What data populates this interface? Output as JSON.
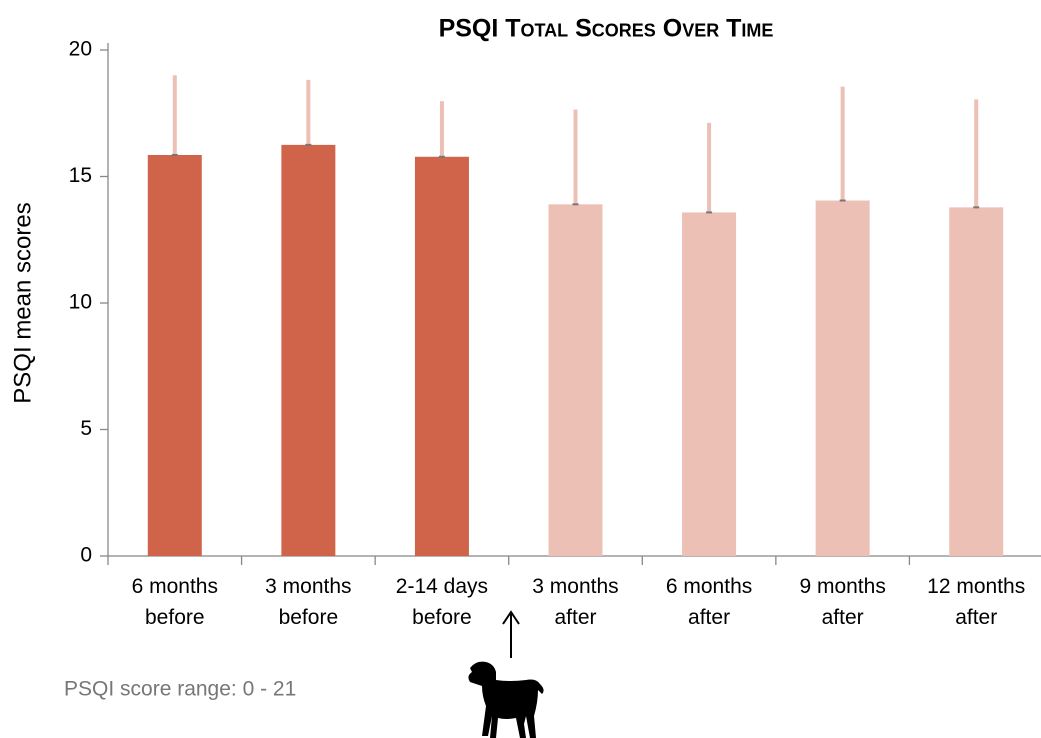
{
  "chart_data": {
    "type": "bar",
    "title": "PSQI Total Scores Over Time",
    "y_label": "PSQI mean scores",
    "categories": [
      [
        "6 months",
        "before"
      ],
      [
        "3 months",
        "before"
      ],
      [
        "2-14 days",
        "before"
      ],
      [
        "3 months",
        "after"
      ],
      [
        "6 months",
        "after"
      ],
      [
        "9 months",
        "after"
      ],
      [
        "12 months",
        "after"
      ]
    ],
    "values": [
      15.85,
      16.25,
      15.78,
      13.9,
      13.58,
      14.05,
      13.78
    ],
    "errors": [
      3.15,
      2.57,
      2.2,
      3.75,
      3.54,
      4.5,
      4.27
    ],
    "colors": [
      "#d0644a",
      "#d0644a",
      "#d0644a",
      "#edc0b5",
      "#edc0b5",
      "#edc0b5",
      "#edc0b5"
    ],
    "error_color": "#edc0b5",
    "ylim": [
      0,
      20
    ],
    "yticks": [
      0,
      5,
      10,
      15,
      20
    ],
    "grid": false,
    "annotation": "PSQI score range: 0 - 21"
  }
}
